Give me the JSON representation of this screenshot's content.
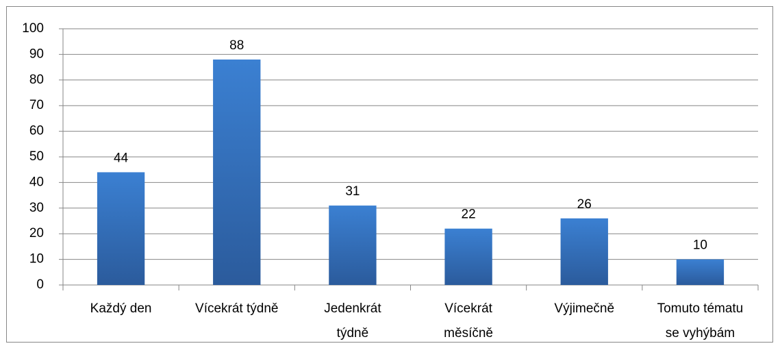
{
  "chart_data": {
    "type": "bar",
    "categories": [
      "Každý den",
      "Vícekrát týdně",
      "Jedenkrát\ntýdně",
      "Vícekrát\nměsíčně",
      "Výjimečně",
      "Tomuto tématu\nse vyhýbám"
    ],
    "values": [
      44,
      88,
      31,
      22,
      26,
      10
    ],
    "color": "#3a7fd0",
    "ylim": [
      0,
      100
    ],
    "yticks": [
      0,
      10,
      20,
      30,
      40,
      50,
      60,
      70,
      80,
      90,
      100
    ],
    "grid": true
  }
}
